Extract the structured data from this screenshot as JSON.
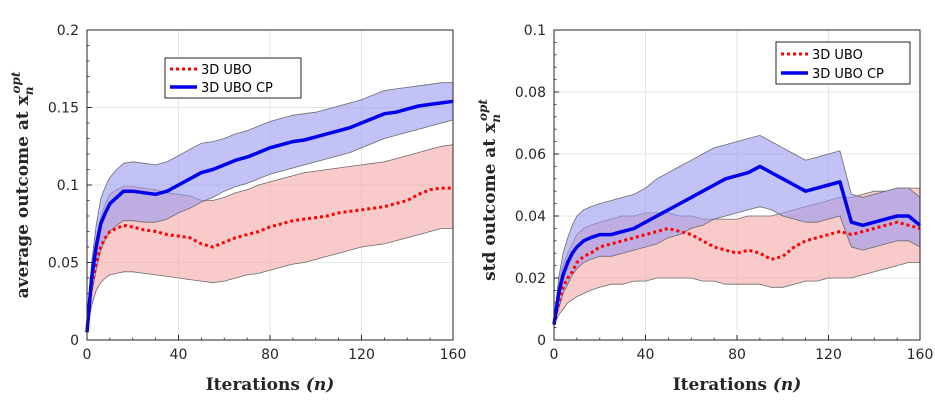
{
  "colors": {
    "ubo": "#ff0000",
    "ubo_band": "#f4a6a6",
    "ubo_cp": "#0000ee",
    "ubo_cp_band": "#9a9af2",
    "band_edge": "#6b6b6b",
    "grid": "#e6e6e6"
  },
  "chart_data": [
    {
      "type": "line",
      "title": "",
      "xlabel": "Iterations",
      "xlabel_var": "(n)",
      "ylabel": "average outcome at x",
      "ylabel_sub": "n",
      "ylabel_sup": "opt",
      "xlim": [
        0,
        160
      ],
      "ylim": [
        0,
        0.2
      ],
      "xticks": [
        0,
        40,
        80,
        120,
        160
      ],
      "xtick_labels": [
        "0",
        "40",
        "80",
        "120",
        "160"
      ],
      "yticks": [
        0,
        0.05,
        0.1,
        0.15,
        0.2
      ],
      "ytick_labels": [
        "0",
        "0.05",
        "0.1",
        "0.15",
        "0.2"
      ],
      "legend_position": "top-center",
      "series": [
        {
          "name": "3D UBO",
          "style": "dotted",
          "x": [
            0,
            2,
            4,
            6,
            8,
            10,
            13,
            16,
            20,
            25,
            30,
            35,
            40,
            45,
            50,
            55,
            60,
            65,
            70,
            75,
            80,
            85,
            90,
            95,
            100,
            105,
            110,
            115,
            120,
            125,
            130,
            135,
            140,
            145,
            150,
            155,
            160
          ],
          "values": [
            0.005,
            0.035,
            0.05,
            0.06,
            0.066,
            0.07,
            0.072,
            0.074,
            0.073,
            0.071,
            0.07,
            0.068,
            0.067,
            0.066,
            0.062,
            0.06,
            0.063,
            0.066,
            0.068,
            0.07,
            0.073,
            0.075,
            0.077,
            0.078,
            0.079,
            0.08,
            0.082,
            0.083,
            0.084,
            0.085,
            0.086,
            0.088,
            0.09,
            0.094,
            0.097,
            0.098,
            0.098
          ],
          "lower": [
            0.005,
            0.022,
            0.032,
            0.037,
            0.04,
            0.042,
            0.043,
            0.044,
            0.044,
            0.043,
            0.042,
            0.041,
            0.04,
            0.039,
            0.038,
            0.037,
            0.038,
            0.04,
            0.042,
            0.043,
            0.045,
            0.047,
            0.049,
            0.05,
            0.052,
            0.054,
            0.056,
            0.058,
            0.06,
            0.061,
            0.062,
            0.064,
            0.066,
            0.068,
            0.07,
            0.072,
            0.072
          ],
          "upper": [
            0.005,
            0.048,
            0.066,
            0.079,
            0.088,
            0.094,
            0.097,
            0.099,
            0.099,
            0.098,
            0.097,
            0.095,
            0.094,
            0.093,
            0.09,
            0.09,
            0.092,
            0.095,
            0.097,
            0.1,
            0.102,
            0.104,
            0.106,
            0.108,
            0.109,
            0.11,
            0.111,
            0.112,
            0.113,
            0.114,
            0.115,
            0.117,
            0.119,
            0.121,
            0.123,
            0.125,
            0.126
          ]
        },
        {
          "name": "3D UBO CP",
          "style": "solid",
          "x": [
            0,
            2,
            4,
            6,
            8,
            10,
            13,
            16,
            20,
            25,
            30,
            35,
            40,
            45,
            50,
            55,
            60,
            65,
            70,
            75,
            80,
            85,
            90,
            95,
            100,
            105,
            110,
            115,
            120,
            125,
            130,
            135,
            140,
            145,
            150,
            155,
            160
          ],
          "values": [
            0.005,
            0.04,
            0.06,
            0.075,
            0.082,
            0.088,
            0.092,
            0.096,
            0.096,
            0.095,
            0.094,
            0.096,
            0.1,
            0.104,
            0.108,
            0.11,
            0.113,
            0.116,
            0.118,
            0.121,
            0.124,
            0.126,
            0.128,
            0.129,
            0.131,
            0.133,
            0.135,
            0.137,
            0.14,
            0.143,
            0.146,
            0.147,
            0.149,
            0.151,
            0.152,
            0.153,
            0.154
          ],
          "lower": [
            0.005,
            0.03,
            0.045,
            0.058,
            0.065,
            0.07,
            0.074,
            0.077,
            0.077,
            0.076,
            0.076,
            0.078,
            0.082,
            0.085,
            0.089,
            0.092,
            0.096,
            0.099,
            0.101,
            0.104,
            0.107,
            0.109,
            0.111,
            0.113,
            0.115,
            0.117,
            0.119,
            0.121,
            0.124,
            0.127,
            0.13,
            0.132,
            0.134,
            0.136,
            0.138,
            0.14,
            0.142
          ],
          "upper": [
            0.005,
            0.05,
            0.074,
            0.091,
            0.099,
            0.105,
            0.11,
            0.114,
            0.115,
            0.114,
            0.113,
            0.115,
            0.119,
            0.123,
            0.127,
            0.128,
            0.13,
            0.133,
            0.135,
            0.138,
            0.141,
            0.143,
            0.145,
            0.146,
            0.147,
            0.149,
            0.151,
            0.153,
            0.155,
            0.158,
            0.161,
            0.162,
            0.163,
            0.164,
            0.165,
            0.166,
            0.166
          ]
        }
      ]
    },
    {
      "type": "line",
      "title": "",
      "xlabel": "Iterations",
      "xlabel_var": "(n)",
      "ylabel": "std outcome at x",
      "ylabel_sub": "n",
      "ylabel_sup": "opt",
      "xlim": [
        0,
        160
      ],
      "ylim": [
        0,
        0.1
      ],
      "xticks": [
        0,
        40,
        80,
        120,
        160
      ],
      "xtick_labels": [
        "0",
        "40",
        "80",
        "120",
        "160"
      ],
      "yticks": [
        0,
        0.02,
        0.04,
        0.06,
        0.08,
        0.1
      ],
      "ytick_labels": [
        "0",
        "0.02",
        "0.04",
        "0.06",
        "0.08",
        "0.1"
      ],
      "legend_position": "top-right",
      "series": [
        {
          "name": "3D UBO",
          "style": "dotted",
          "x": [
            0,
            2,
            4,
            6,
            8,
            10,
            13,
            16,
            20,
            25,
            30,
            35,
            40,
            45,
            50,
            55,
            60,
            65,
            70,
            75,
            80,
            85,
            90,
            95,
            100,
            105,
            110,
            115,
            120,
            125,
            130,
            135,
            140,
            145,
            150,
            155,
            160
          ],
          "values": [
            0.005,
            0.012,
            0.017,
            0.02,
            0.022,
            0.025,
            0.027,
            0.028,
            0.03,
            0.031,
            0.032,
            0.033,
            0.034,
            0.035,
            0.036,
            0.035,
            0.034,
            0.032,
            0.03,
            0.029,
            0.028,
            0.029,
            0.028,
            0.026,
            0.027,
            0.03,
            0.032,
            0.033,
            0.034,
            0.035,
            0.034,
            0.035,
            0.036,
            0.037,
            0.038,
            0.037,
            0.036
          ],
          "lower": [
            0.005,
            0.008,
            0.01,
            0.012,
            0.013,
            0.014,
            0.015,
            0.016,
            0.017,
            0.018,
            0.018,
            0.019,
            0.019,
            0.02,
            0.02,
            0.02,
            0.02,
            0.019,
            0.019,
            0.018,
            0.018,
            0.018,
            0.018,
            0.017,
            0.017,
            0.018,
            0.019,
            0.019,
            0.02,
            0.02,
            0.02,
            0.021,
            0.022,
            0.023,
            0.024,
            0.025,
            0.025
          ],
          "upper": [
            0.005,
            0.018,
            0.024,
            0.028,
            0.031,
            0.034,
            0.036,
            0.037,
            0.038,
            0.039,
            0.04,
            0.04,
            0.041,
            0.041,
            0.041,
            0.04,
            0.04,
            0.039,
            0.039,
            0.039,
            0.039,
            0.04,
            0.04,
            0.04,
            0.041,
            0.042,
            0.043,
            0.044,
            0.045,
            0.046,
            0.046,
            0.047,
            0.048,
            0.048,
            0.049,
            0.049,
            0.049
          ]
        },
        {
          "name": "3D UBO CP",
          "style": "solid",
          "x": [
            0,
            2,
            4,
            6,
            8,
            10,
            13,
            16,
            20,
            25,
            30,
            35,
            40,
            45,
            50,
            55,
            60,
            65,
            70,
            75,
            80,
            85,
            90,
            95,
            100,
            105,
            110,
            115,
            120,
            125,
            130,
            135,
            140,
            145,
            150,
            155,
            160
          ],
          "values": [
            0.005,
            0.015,
            0.021,
            0.025,
            0.028,
            0.03,
            0.032,
            0.033,
            0.034,
            0.034,
            0.035,
            0.036,
            0.038,
            0.04,
            0.042,
            0.044,
            0.046,
            0.048,
            0.05,
            0.052,
            0.053,
            0.054,
            0.056,
            0.054,
            0.052,
            0.05,
            0.048,
            0.049,
            0.05,
            0.051,
            0.038,
            0.037,
            0.038,
            0.039,
            0.04,
            0.04,
            0.037
          ],
          "lower": [
            0.005,
            0.01,
            0.015,
            0.018,
            0.021,
            0.023,
            0.025,
            0.026,
            0.027,
            0.027,
            0.028,
            0.029,
            0.03,
            0.031,
            0.033,
            0.034,
            0.036,
            0.037,
            0.039,
            0.04,
            0.041,
            0.042,
            0.043,
            0.042,
            0.04,
            0.039,
            0.038,
            0.038,
            0.039,
            0.04,
            0.03,
            0.029,
            0.03,
            0.031,
            0.032,
            0.032,
            0.03
          ],
          "upper": [
            0.005,
            0.02,
            0.028,
            0.033,
            0.037,
            0.04,
            0.042,
            0.043,
            0.044,
            0.045,
            0.046,
            0.047,
            0.049,
            0.052,
            0.054,
            0.056,
            0.058,
            0.06,
            0.062,
            0.063,
            0.064,
            0.065,
            0.066,
            0.064,
            0.062,
            0.06,
            0.058,
            0.059,
            0.06,
            0.061,
            0.047,
            0.046,
            0.047,
            0.048,
            0.049,
            0.049,
            0.046
          ]
        }
      ]
    }
  ]
}
